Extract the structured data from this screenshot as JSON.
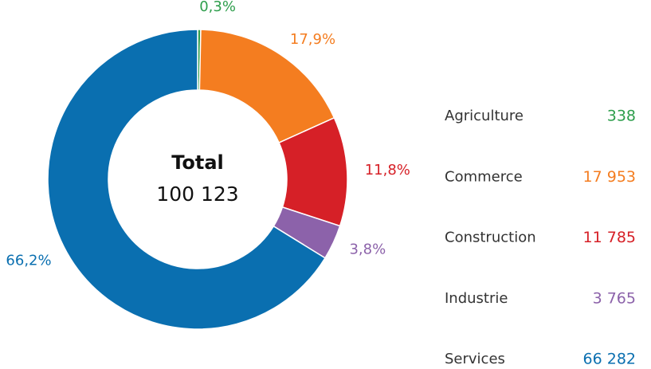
{
  "chart_data": {
    "type": "donut",
    "categories": [
      "Agriculture",
      "Commerce",
      "Construction",
      "Industrie",
      "Services"
    ],
    "values": [
      338,
      17953,
      11785,
      3765,
      66282
    ],
    "value_labels": [
      "338",
      "17 953",
      "11 785",
      "3 765",
      "66 282"
    ],
    "percentages": [
      0.3,
      17.9,
      11.8,
      3.8,
      66.2
    ],
    "percentage_labels": [
      "0,3%",
      "17,9%",
      "11,8%",
      "3,8%",
      "66,2%"
    ],
    "colors": [
      "#2e9e4c",
      "#f47d20",
      "#d62027",
      "#8c62aa",
      "#0a6fb0"
    ],
    "total_label": "Total",
    "total": 100123,
    "total_value_label": "100 123"
  }
}
